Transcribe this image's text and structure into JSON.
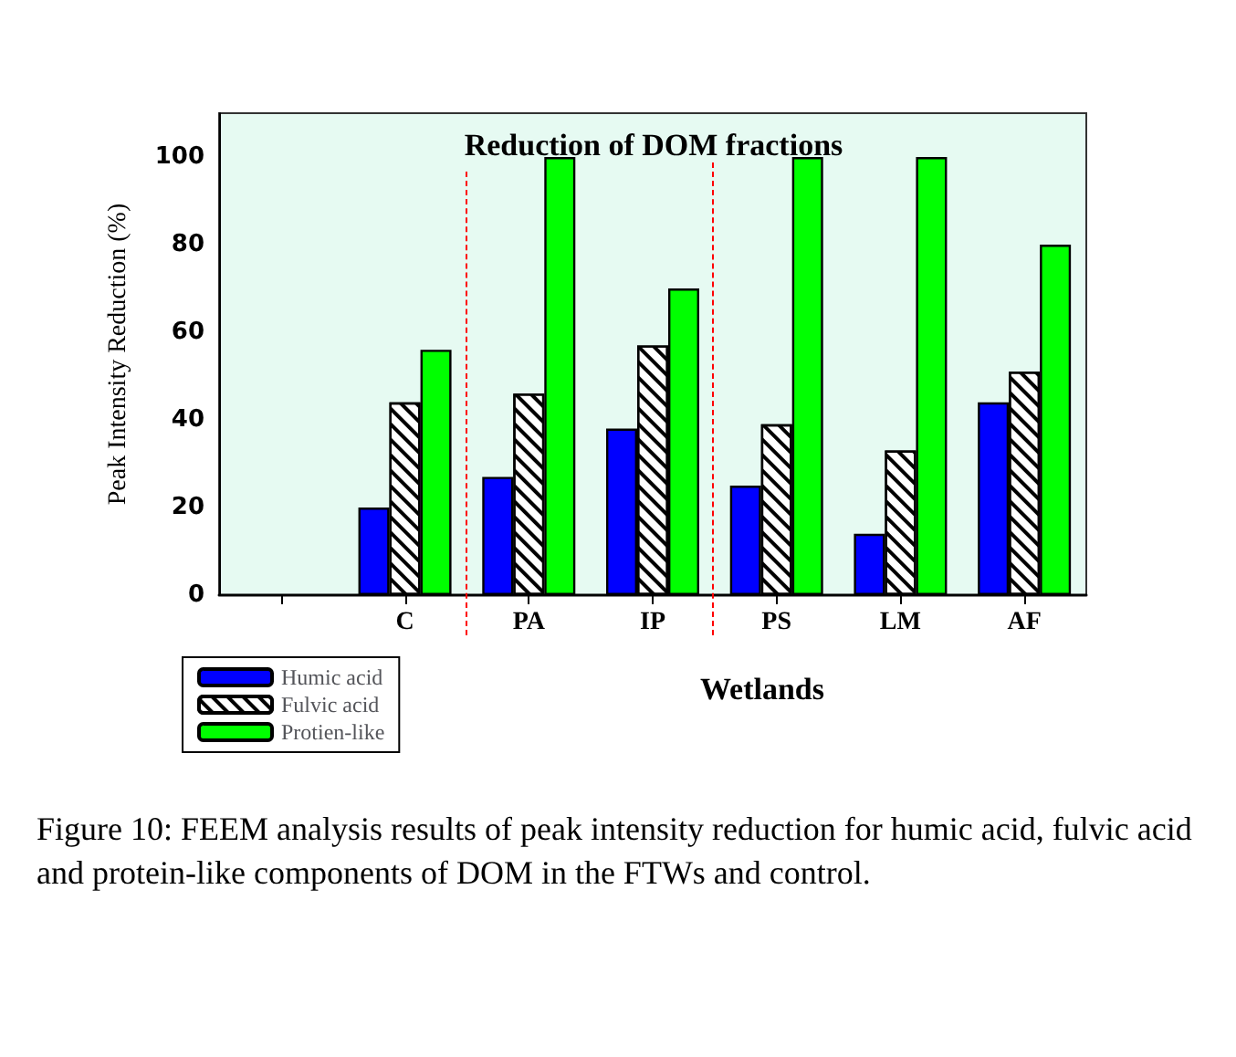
{
  "chart_data": {
    "type": "bar",
    "title": "Reduction of DOM fractions",
    "xlabel": "Wetlands",
    "ylabel": "Peak Intensity Reduction (%)",
    "categories": [
      null,
      "C",
      "PA",
      "IP",
      "PS",
      "LM",
      "AF"
    ],
    "series": [
      {
        "name": "Humic acid",
        "color": "#0000ff",
        "values": [
          null,
          20,
          27,
          38,
          25,
          14,
          44
        ]
      },
      {
        "name": "Fulvic acid",
        "color": "#ffffff",
        "values": [
          null,
          44,
          46,
          57,
          39,
          33,
          51
        ]
      },
      {
        "name": "Protien-like",
        "color": "#00ff00",
        "values": [
          null,
          56,
          100,
          70,
          100,
          100,
          80
        ]
      }
    ],
    "ylim": [
      0,
      110
    ],
    "yticks": [
      0,
      20,
      40,
      60,
      80,
      100
    ],
    "grid": false,
    "legend": "bottom left",
    "annotations": [
      "Figure 10: FEEM analysis results of peak intensity reduction for humic acid, fulvic acid and protein-like components of DOM in the FTWs and control."
    ]
  }
}
